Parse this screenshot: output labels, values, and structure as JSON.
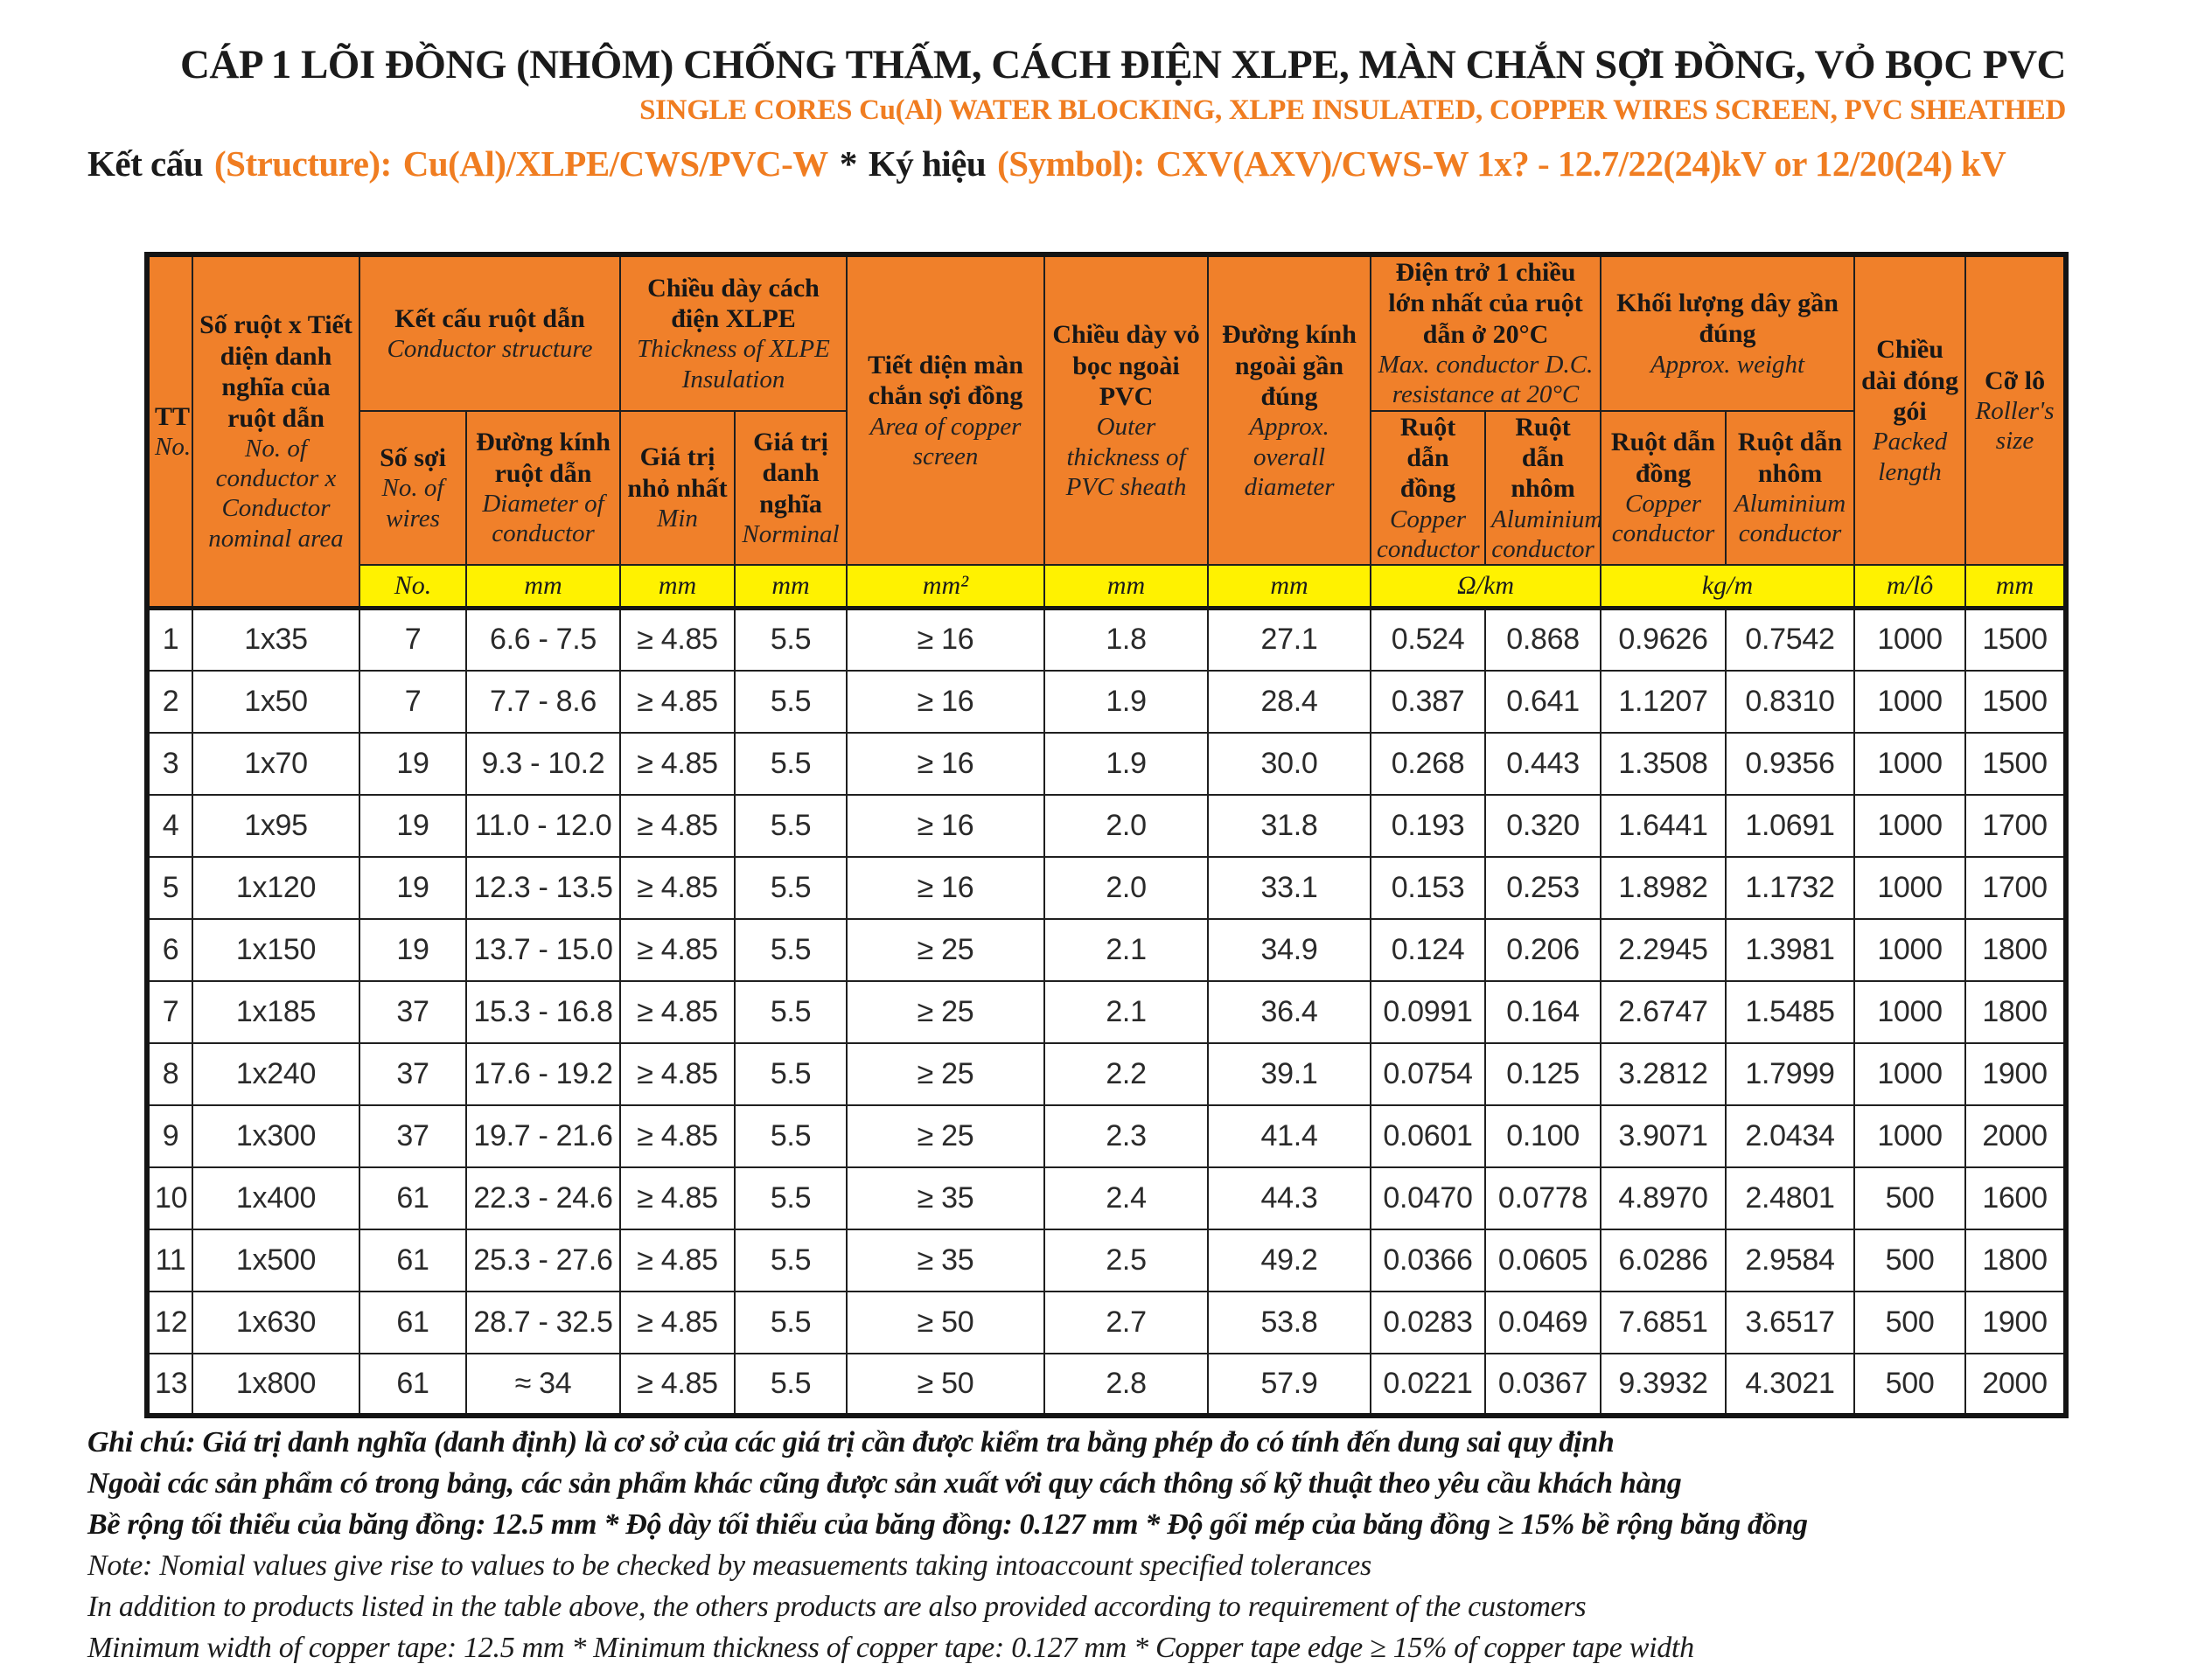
{
  "header": {
    "title_vi": "CÁP 1 LÕI ĐỒNG (NHÔM) CHỐNG THẤM, CÁCH ĐIỆN XLPE, MÀN CHẮN SỢI ĐỒNG,  VỎ BỌC PVC",
    "title_en": "SINGLE CORES Cu(Al) WATER BLOCKING, XLPE INSULATED, COPPER WIRES SCREEN,  PVC SHEATHED",
    "structure": {
      "label_vi": "Kết cấu",
      "label_en": "(Structure):",
      "value": "Cu(Al)/XLPE/CWS/PVC-W",
      "separator": "*",
      "symbol_label_vi": "Ký hiệu",
      "symbol_label_en": "(Symbol):",
      "symbol_value": "CXV(AXV)/CWS-W 1x? - 12.7/22(24)kV or 12/20(24) kV"
    }
  },
  "colors": {
    "header_orange": "#f0802a",
    "units_yellow": "#fff200",
    "accent_text_orange": "#f07d21",
    "border_black": "#141414"
  },
  "table": {
    "headers": {
      "tt": {
        "vi": "TT",
        "en": "No."
      },
      "area": {
        "vi": "Số ruột x Tiết diện danh nghĩa của ruột dẫn",
        "en": "No. of conductor x Conductor nominal area"
      },
      "structure": {
        "vi": "Kết cấu ruột dẫn",
        "en": "Conductor structure"
      },
      "xlpe": {
        "vi": "Chiều dày cách điện XLPE",
        "en": "Thickness of XLPE Insulation"
      },
      "screen": {
        "vi": "Tiết diện màn chắn sợi đồng",
        "en": "Area of copper screen"
      },
      "sheath": {
        "vi": "Chiều dày vỏ bọc ngoài PVC",
        "en": "Outer thickness of PVC sheath"
      },
      "overall_diameter": {
        "vi": "Đường kính ngoài gần đúng",
        "en": "Approx. overall diameter"
      },
      "resistance": {
        "vi": "Điện trở 1 chiều lớn nhất của ruột dẫn ở 20°C",
        "en": "Max. conductor D.C. resistance at 20°C"
      },
      "weight": {
        "vi": "Khối lượng dây gần đúng",
        "en": "Approx. weight"
      },
      "packed_length": {
        "vi": "Chiều dài đóng gói",
        "en": "Packed length"
      },
      "roller_size": {
        "vi": "Cỡ lô",
        "en": "Roller's size"
      },
      "wires": {
        "vi": "Số sợi",
        "en": "No. of wires"
      },
      "diameter": {
        "vi": "Đường kính ruột dẫn",
        "en": "Diameter of conductor"
      },
      "min": {
        "vi": "Giá trị nhỏ nhất",
        "en": "Min"
      },
      "nominal": {
        "vi": "Giá trị danh nghĩa",
        "en": "Norminal"
      },
      "res_copper": {
        "vi": "Ruột dẫn đồng",
        "en": "Copper conductor"
      },
      "res_aluminium": {
        "vi": "Ruột dẫn nhôm",
        "en": "Aluminium conductor"
      },
      "wt_copper": {
        "vi": "Ruột dẫn đồng",
        "en": "Copper conductor"
      },
      "wt_aluminium": {
        "vi": "Ruột dẫn nhôm",
        "en": "Aluminium conductor"
      }
    },
    "units": [
      {
        "label": "No.",
        "span": 1
      },
      {
        "label": "mm",
        "span": 1
      },
      {
        "label": "mm",
        "span": 1
      },
      {
        "label": "mm",
        "span": 1
      },
      {
        "label": "mm²",
        "span": 1
      },
      {
        "label": "mm",
        "span": 1
      },
      {
        "label": "mm",
        "span": 1
      },
      {
        "label": "Ω/km",
        "span": 2
      },
      {
        "label": "kg/m",
        "span": 2
      },
      {
        "label": "m/lô",
        "span": 1
      },
      {
        "label": "mm",
        "span": 1
      }
    ],
    "rows": [
      [
        "1",
        "1x35",
        "7",
        "6.6 - 7.5",
        "≥ 4.85",
        "5.5",
        "≥ 16",
        "1.8",
        "27.1",
        "0.524",
        "0.868",
        "0.9626",
        "0.7542",
        "1000",
        "1500"
      ],
      [
        "2",
        "1x50",
        "7",
        "7.7 - 8.6",
        "≥ 4.85",
        "5.5",
        "≥ 16",
        "1.9",
        "28.4",
        "0.387",
        "0.641",
        "1.1207",
        "0.8310",
        "1000",
        "1500"
      ],
      [
        "3",
        "1x70",
        "19",
        "9.3 - 10.2",
        "≥ 4.85",
        "5.5",
        "≥ 16",
        "1.9",
        "30.0",
        "0.268",
        "0.443",
        "1.3508",
        "0.9356",
        "1000",
        "1500"
      ],
      [
        "4",
        "1x95",
        "19",
        "11.0 - 12.0",
        "≥ 4.85",
        "5.5",
        "≥ 16",
        "2.0",
        "31.8",
        "0.193",
        "0.320",
        "1.6441",
        "1.0691",
        "1000",
        "1700"
      ],
      [
        "5",
        "1x120",
        "19",
        "12.3 - 13.5",
        "≥ 4.85",
        "5.5",
        "≥ 16",
        "2.0",
        "33.1",
        "0.153",
        "0.253",
        "1.8982",
        "1.1732",
        "1000",
        "1700"
      ],
      [
        "6",
        "1x150",
        "19",
        "13.7 - 15.0",
        "≥ 4.85",
        "5.5",
        "≥ 25",
        "2.1",
        "34.9",
        "0.124",
        "0.206",
        "2.2945",
        "1.3981",
        "1000",
        "1800"
      ],
      [
        "7",
        "1x185",
        "37",
        "15.3 - 16.8",
        "≥ 4.85",
        "5.5",
        "≥ 25",
        "2.1",
        "36.4",
        "0.0991",
        "0.164",
        "2.6747",
        "1.5485",
        "1000",
        "1800"
      ],
      [
        "8",
        "1x240",
        "37",
        "17.6 - 19.2",
        "≥ 4.85",
        "5.5",
        "≥ 25",
        "2.2",
        "39.1",
        "0.0754",
        "0.125",
        "3.2812",
        "1.7999",
        "1000",
        "1900"
      ],
      [
        "9",
        "1x300",
        "37",
        "19.7 - 21.6",
        "≥ 4.85",
        "5.5",
        "≥ 25",
        "2.3",
        "41.4",
        "0.0601",
        "0.100",
        "3.9071",
        "2.0434",
        "1000",
        "2000"
      ],
      [
        "10",
        "1x400",
        "61",
        "22.3 - 24.6",
        "≥ 4.85",
        "5.5",
        "≥ 35",
        "2.4",
        "44.3",
        "0.0470",
        "0.0778",
        "4.8970",
        "2.4801",
        "500",
        "1600"
      ],
      [
        "11",
        "1x500",
        "61",
        "25.3 - 27.6",
        "≥ 4.85",
        "5.5",
        "≥ 35",
        "2.5",
        "49.2",
        "0.0366",
        "0.0605",
        "6.0286",
        "2.9584",
        "500",
        "1800"
      ],
      [
        "12",
        "1x630",
        "61",
        "28.7 - 32.5",
        "≥ 4.85",
        "5.5",
        "≥ 50",
        "2.7",
        "53.8",
        "0.0283",
        "0.0469",
        "7.6851",
        "3.6517",
        "500",
        "1900"
      ],
      [
        "13",
        "1x800",
        "61",
        "≈ 34",
        "≥ 4.85",
        "5.5",
        "≥ 50",
        "2.8",
        "57.9",
        "0.0221",
        "0.0367",
        "9.3932",
        "4.3021",
        "500",
        "2000"
      ]
    ]
  },
  "notes": {
    "vi": [
      "Ghi chú: Giá trị danh nghĩa (danh định) là cơ sở của các giá trị cần được kiểm tra bằng phép đo có tính đến dung sai quy định",
      "Ngoài các sản phẩm có trong bảng, các sản phẩm khác cũng được sản xuất với quy cách thông số kỹ thuật theo yêu cầu khách hàng",
      "Bề rộng tối thiểu của băng đồng: 12.5 mm * Độ dày tối thiểu của băng đồng: 0.127 mm * Độ gối mép của băng đồng ≥ 15% bề rộng băng đồng"
    ],
    "en": [
      "Note: Nomial values give rise to values to be checked by measuements taking intoaccount specified tolerances",
      "In addition to products listed in the table above, the others products are also provided according to requirement of the customers",
      "Minimum width of copper tape: 12.5 mm * Minimum thickness of copper tape: 0.127 mm * Copper tape edge ≥ 15% of copper tape width"
    ]
  }
}
